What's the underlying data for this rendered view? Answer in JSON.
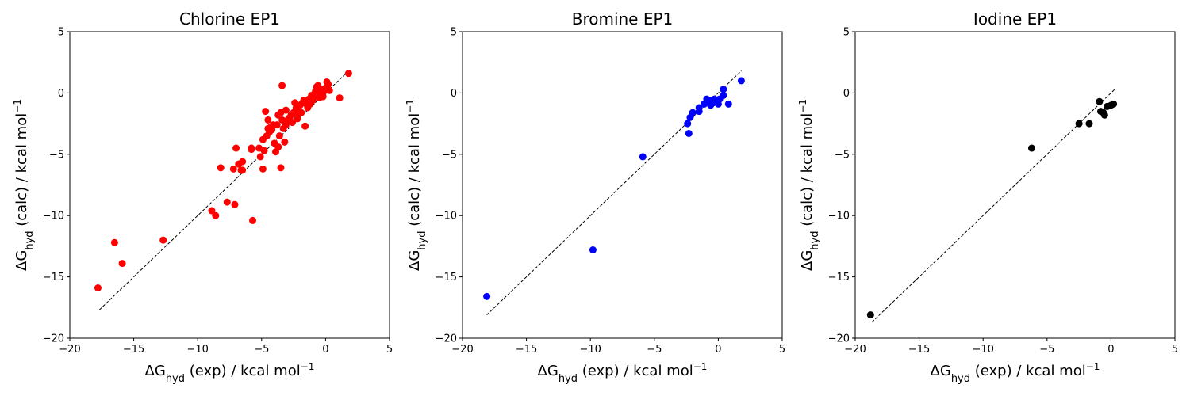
{
  "chart_data": [
    {
      "type": "scatter",
      "title": "Chlorine EP1",
      "color": "#ff0000",
      "xlim": [
        -20,
        5
      ],
      "ylim": [
        -20,
        5
      ],
      "xticks": [
        -20,
        -15,
        -10,
        -5,
        0,
        5
      ],
      "yticks": [
        -20,
        -15,
        -10,
        -5,
        0,
        5
      ],
      "xlabel": {
        "pre": "ΔG",
        "sub": "hyd",
        "mid": " (exp) / kcal mol",
        "sup": "−1"
      },
      "ylabel": {
        "pre": "ΔG",
        "sub": "hyd",
        "mid": " (calc) / kcal mol",
        "sup": "−1"
      },
      "diagonal": [
        -17.7,
        1.8
      ],
      "x": [
        -17.8,
        -16.5,
        -15.9,
        -12.7,
        -8.9,
        -8.6,
        -8.2,
        -7.7,
        -7.2,
        -7.1,
        -7.0,
        -6.8,
        -6.6,
        -6.5,
        -6.5,
        -5.8,
        -5.8,
        -5.7,
        -5.2,
        -5.1,
        -4.9,
        -4.9,
        -4.8,
        -4.7,
        -4.6,
        -4.5,
        -4.5,
        -4.4,
        -4.3,
        -4.2,
        -4.1,
        -4.0,
        -3.9,
        -3.8,
        -3.7,
        -3.7,
        -3.6,
        -3.5,
        -3.5,
        -3.4,
        -3.3,
        -3.2,
        -3.1,
        -3.1,
        -3.0,
        -2.9,
        -2.8,
        -2.7,
        -2.6,
        -2.5,
        -2.4,
        -2.3,
        -2.2,
        -2.2,
        -2.1,
        -2.0,
        -1.9,
        -1.8,
        -1.7,
        -1.6,
        -1.5,
        -1.4,
        -1.3,
        -1.2,
        -1.1,
        -1.0,
        -0.9,
        -0.8,
        -0.7,
        -0.6,
        -0.5,
        -0.4,
        -0.3,
        -0.2,
        -0.1,
        0.0,
        0.1,
        0.2,
        0.3,
        -3.4,
        -1.5,
        -0.5,
        1.1,
        1.8,
        -0.2
      ],
      "y": [
        -15.9,
        -12.2,
        -13.9,
        -12.0,
        -9.6,
        -10.0,
        -6.1,
        -8.9,
        -6.2,
        -9.1,
        -4.5,
        -5.8,
        -6.3,
        -5.6,
        -6.3,
        -4.5,
        -4.6,
        -10.4,
        -4.5,
        -5.2,
        -3.8,
        -6.2,
        -4.7,
        -1.5,
        -3.5,
        -2.9,
        -2.2,
        -3.2,
        -2.8,
        -3.0,
        -2.6,
        -4.1,
        -4.8,
        -2.6,
        -1.8,
        -4.4,
        -3.5,
        -1.6,
        -6.1,
        -2.2,
        -2.9,
        -4.0,
        -2.6,
        -1.4,
        -2.3,
        -2.1,
        -2.0,
        -1.8,
        -2.4,
        -1.6,
        -0.8,
        -1.2,
        -2.1,
        -1.8,
        -1.4,
        -1.0,
        -1.6,
        -0.8,
        -0.6,
        -2.7,
        -0.7,
        -1.2,
        -0.5,
        -0.9,
        -0.2,
        -0.6,
        -0.3,
        0.1,
        0.5,
        0.6,
        -0.1,
        0.3,
        0.0,
        -0.3,
        0.2,
        0.4,
        0.9,
        0.7,
        0.2,
        0.6,
        -0.9,
        -0.4,
        -0.4,
        1.6,
        0.0
      ]
    },
    {
      "type": "scatter",
      "title": "Bromine EP1",
      "color": "#0000ff",
      "xlim": [
        -20,
        5
      ],
      "ylim": [
        -20,
        5
      ],
      "xticks": [
        -20,
        -15,
        -10,
        -5,
        0,
        5
      ],
      "yticks": [
        -20,
        -15,
        -10,
        -5,
        0,
        5
      ],
      "xlabel": {
        "pre": "ΔG",
        "sub": "hyd",
        "mid": " (exp) / kcal mol",
        "sup": "−1"
      },
      "ylabel": {
        "pre": "ΔG",
        "sub": "hyd",
        "mid": " (calc) / kcal mol",
        "sup": "−1"
      },
      "diagonal": [
        -18.1,
        1.8
      ],
      "x": [
        -18.1,
        -9.8,
        -5.9,
        -2.4,
        -2.3,
        -2.2,
        -2.0,
        -1.5,
        -1.5,
        -1.1,
        -0.9,
        -0.8,
        -0.6,
        -0.5,
        -0.4,
        -0.3,
        -0.1,
        0.0,
        0.1,
        0.4,
        0.4,
        0.8,
        1.8
      ],
      "y": [
        -16.6,
        -12.8,
        -5.2,
        -2.5,
        -3.3,
        -2.0,
        -1.6,
        -1.2,
        -1.5,
        -0.9,
        -0.5,
        -0.7,
        -1.0,
        -0.6,
        -0.8,
        -0.5,
        -0.6,
        -0.9,
        -0.5,
        -0.2,
        0.3,
        -0.9,
        1.0
      ]
    },
    {
      "type": "scatter",
      "title": "Iodine EP1",
      "color": "#000000",
      "xlim": [
        -20,
        5
      ],
      "ylim": [
        -20,
        5
      ],
      "xticks": [
        -20,
        -15,
        -10,
        -5,
        0,
        5
      ],
      "yticks": [
        -20,
        -15,
        -10,
        -5,
        0,
        5
      ],
      "xlabel": {
        "pre": "ΔG",
        "sub": "hyd",
        "mid": " (exp) / kcal mol",
        "sup": "−1"
      },
      "ylabel": {
        "pre": "ΔG",
        "sub": "hyd",
        "mid": " (calc) / kcal mol",
        "sup": "−1"
      },
      "diagonal": [
        -18.7,
        0.3
      ],
      "x": [
        -18.8,
        -6.2,
        -2.5,
        -1.7,
        -0.9,
        -0.8,
        -0.6,
        -0.5,
        -0.3,
        0.0,
        0.2
      ],
      "y": [
        -18.1,
        -4.5,
        -2.5,
        -2.5,
        -0.7,
        -1.5,
        -1.6,
        -1.8,
        -1.1,
        -1.0,
        -0.9
      ]
    }
  ]
}
